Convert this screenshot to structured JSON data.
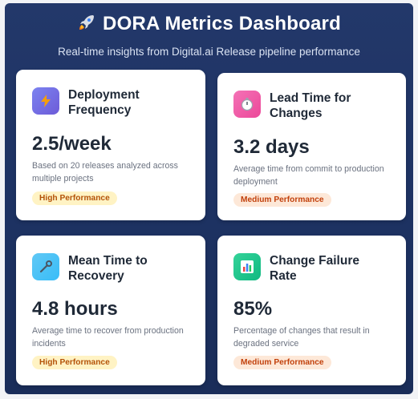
{
  "header": {
    "title": "DORA Metrics Dashboard",
    "title_icon": "rocket-icon",
    "subtitle": "Real-time insights from Digital.ai Release pipeline performance"
  },
  "colors": {
    "background": "#1d3262",
    "card": "#ffffff",
    "high_badge_bg": "#fff3c4",
    "high_badge_text": "#b45309",
    "medium_badge_bg": "#fde8d8",
    "medium_badge_text": "#c2410c"
  },
  "cards": [
    {
      "title": "Deployment Frequency",
      "icon": "lightning-icon",
      "value": "2.5/week",
      "description": "Based on 20 releases analyzed across multiple projects",
      "badge": "High Performance"
    },
    {
      "title": "Lead Time for Changes",
      "icon": "stopwatch-icon",
      "value": "3.2 days",
      "description": "Average time from commit to production deployment",
      "badge": "Medium Performance"
    },
    {
      "title": "Mean Time to Recovery",
      "icon": "wrench-icon",
      "value": "4.8 hours",
      "description": "Average time to recover from production incidents",
      "badge": "High Performance"
    },
    {
      "title": "Change Failure Rate",
      "icon": "bar-chart-icon",
      "value": "85%",
      "description": "Percentage of changes that result in degraded service",
      "badge": "Medium Performance"
    }
  ]
}
